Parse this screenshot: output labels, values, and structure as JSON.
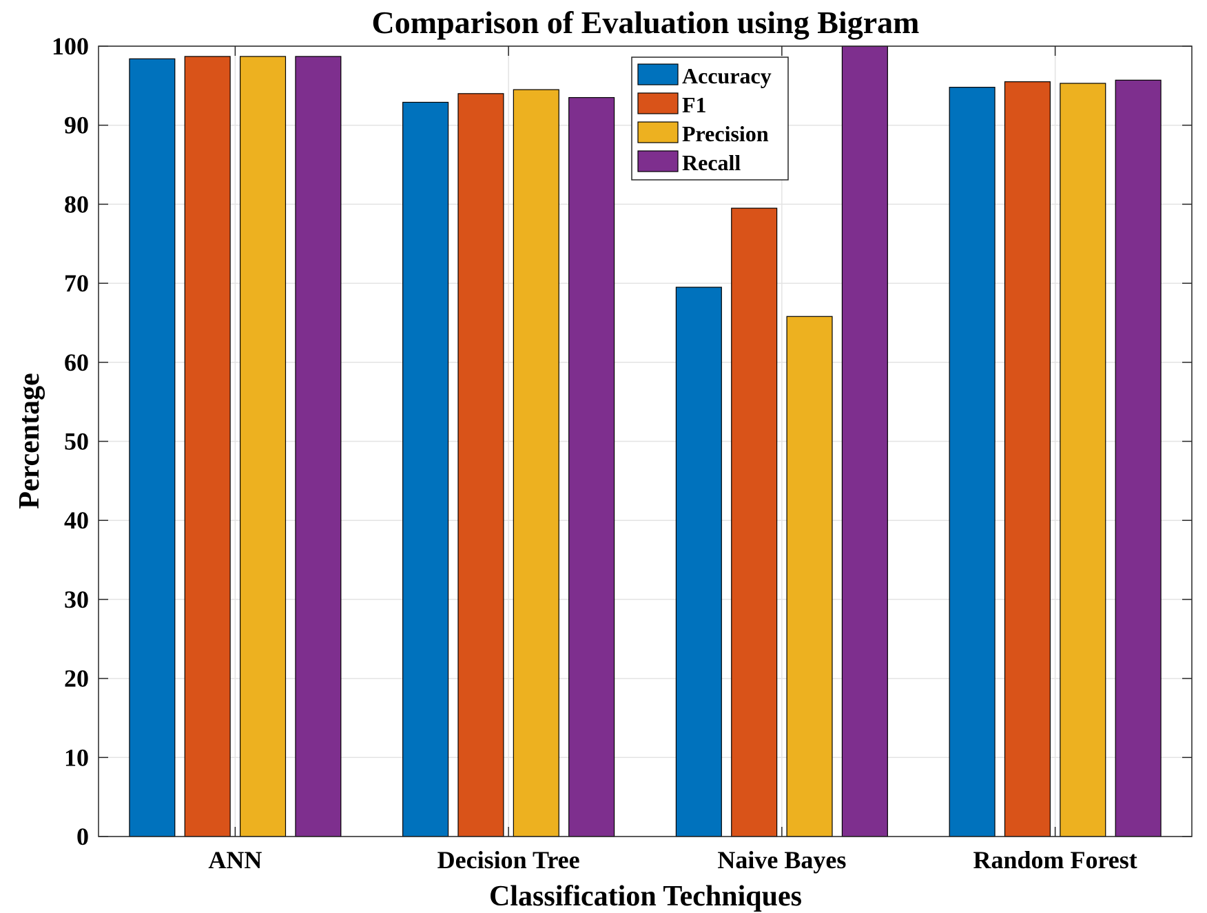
{
  "chart_data": {
    "type": "bar",
    "title": "Comparison of Evaluation using Bigram",
    "xlabel": "Classification Techniques",
    "ylabel": "Percentage",
    "categories": [
      "ANN",
      "Decision Tree",
      "Naive Bayes",
      "Random Forest"
    ],
    "ylim": [
      0,
      100
    ],
    "yticks": [
      0,
      10,
      20,
      30,
      40,
      50,
      60,
      70,
      80,
      90,
      100
    ],
    "grid": true,
    "legend_position": "top-center",
    "series": [
      {
        "name": "Accuracy",
        "color": "#0072BD",
        "values": [
          98.4,
          92.9,
          69.5,
          94.8
        ]
      },
      {
        "name": "F1",
        "color": "#D95319",
        "values": [
          98.7,
          94.0,
          79.5,
          95.5
        ]
      },
      {
        "name": "Precision",
        "color": "#EDB120",
        "values": [
          98.7,
          94.5,
          65.8,
          95.3
        ]
      },
      {
        "name": "Recall",
        "color": "#7E2F8E",
        "values": [
          98.7,
          93.5,
          100,
          95.7
        ]
      }
    ]
  }
}
